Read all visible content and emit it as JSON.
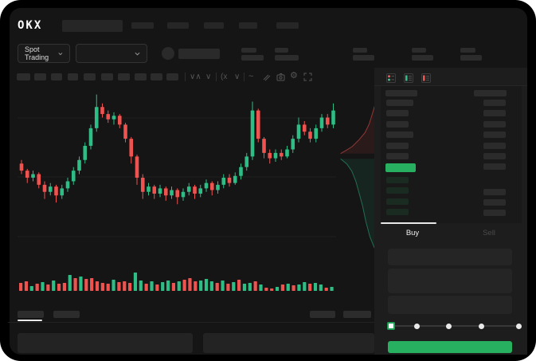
{
  "brand": {
    "logo_text": "OKX"
  },
  "subheader": {
    "market_selector_label": "Spot Trading"
  },
  "trade_panel": {
    "buy_label": "Buy",
    "sell_label": "Sell",
    "slider_stops": 5
  },
  "order_book": {
    "view_icons": [
      "combined-book-icon",
      "bids-book-icon",
      "asks-book-icon"
    ],
    "ask_price_rows": 6,
    "ask_amount_rows": 7,
    "bid_price_rows": 4,
    "bid_amount_rows": 3
  },
  "colors": {
    "up_green": "#2ebd85",
    "down_red": "#ef5350",
    "accent_green": "#27b05f",
    "bid_row_tint": "#1a2b21",
    "screen_bg": "#151515",
    "panel_bg": "#1d1d1d"
  },
  "chart_data": {
    "type": "candlestick",
    "title": "",
    "xlabel": "",
    "ylabel": "",
    "price_scale": [
      0,
      100
    ],
    "grid": "faint-horizontal",
    "candle_format": "[open,high,low,close] (normalized 0-100 price units, no axis labels visible in mockup)",
    "candles": [
      [
        58,
        60,
        52,
        54
      ],
      [
        54,
        55,
        47,
        50
      ],
      [
        50,
        54,
        48,
        52
      ],
      [
        52,
        53,
        44,
        46
      ],
      [
        46,
        48,
        38,
        42
      ],
      [
        42,
        47,
        40,
        45
      ],
      [
        45,
        46,
        36,
        40
      ],
      [
        40,
        46,
        38,
        44
      ],
      [
        44,
        50,
        42,
        48
      ],
      [
        48,
        56,
        46,
        54
      ],
      [
        54,
        62,
        52,
        60
      ],
      [
        60,
        70,
        58,
        68
      ],
      [
        68,
        80,
        66,
        78
      ],
      [
        78,
        97,
        76,
        90
      ],
      [
        90,
        92,
        84,
        86
      ],
      [
        86,
        88,
        81,
        83
      ],
      [
        83,
        87,
        80,
        85
      ],
      [
        85,
        86,
        78,
        80
      ],
      [
        80,
        81,
        70,
        72
      ],
      [
        72,
        73,
        58,
        62
      ],
      [
        62,
        63,
        46,
        50
      ],
      [
        50,
        52,
        38,
        42
      ],
      [
        42,
        47,
        40,
        45
      ],
      [
        45,
        46,
        38,
        41
      ],
      [
        41,
        46,
        39,
        44
      ],
      [
        44,
        45,
        37,
        40
      ],
      [
        40,
        45,
        38,
        43
      ],
      [
        43,
        44,
        35,
        39
      ],
      [
        39,
        44,
        37,
        42
      ],
      [
        42,
        47,
        40,
        45
      ],
      [
        45,
        46,
        38,
        41
      ],
      [
        41,
        46,
        39,
        44
      ],
      [
        44,
        49,
        42,
        47
      ],
      [
        47,
        48,
        40,
        43
      ],
      [
        43,
        48,
        41,
        46
      ],
      [
        46,
        52,
        44,
        50
      ],
      [
        50,
        52,
        45,
        47
      ],
      [
        47,
        53,
        46,
        51
      ],
      [
        51,
        58,
        49,
        56
      ],
      [
        56,
        64,
        54,
        62
      ],
      [
        62,
        93,
        60,
        88
      ],
      [
        88,
        89,
        70,
        72
      ],
      [
        72,
        73,
        61,
        64
      ],
      [
        64,
        66,
        58,
        61
      ],
      [
        61,
        66,
        59,
        64
      ],
      [
        64,
        66,
        60,
        62
      ],
      [
        62,
        68,
        61,
        66
      ],
      [
        66,
        74,
        64,
        72
      ],
      [
        72,
        84,
        70,
        80
      ],
      [
        80,
        82,
        74,
        76
      ],
      [
        76,
        78,
        70,
        72
      ],
      [
        72,
        80,
        70,
        78
      ],
      [
        78,
        86,
        76,
        84
      ],
      [
        84,
        86,
        78,
        80
      ],
      [
        80,
        92,
        78,
        88
      ]
    ],
    "volume_note": "positive = up/green bar, negative = down/red bar, value = relative height",
    "volume": [
      -10,
      -12,
      6,
      -9,
      11,
      -8,
      13,
      -9,
      -10,
      20,
      -16,
      18,
      -15,
      -16,
      -12,
      -10,
      -9,
      14,
      -11,
      -12,
      -10,
      23,
      13,
      -9,
      12,
      -8,
      11,
      13,
      -10,
      12,
      -14,
      -16,
      -12,
      13,
      15,
      12,
      -10,
      13,
      -9,
      11,
      -14,
      9,
      10,
      -12,
      8,
      -4,
      -3,
      5,
      -8,
      9,
      -7,
      8,
      11,
      -9,
      10,
      8,
      -4,
      5
    ],
    "depth": {
      "asks_line": [
        [
          1,
          0.02
        ],
        [
          0.93,
          0.05
        ],
        [
          0.88,
          0.09
        ],
        [
          0.82,
          0.14
        ],
        [
          0.74,
          0.2
        ],
        [
          0.64,
          0.25
        ],
        [
          0.5,
          0.29
        ],
        [
          0.33,
          0.33
        ],
        [
          0.16,
          0.355
        ],
        [
          0.05,
          0.37
        ]
      ],
      "bids_line": [
        [
          0.05,
          0.4
        ],
        [
          0.2,
          0.43
        ],
        [
          0.32,
          0.47
        ],
        [
          0.42,
          0.53
        ],
        [
          0.5,
          0.6
        ],
        [
          0.58,
          0.67
        ],
        [
          0.66,
          0.76
        ],
        [
          0.76,
          0.85
        ],
        [
          0.88,
          0.92
        ],
        [
          1,
          0.99
        ]
      ]
    }
  }
}
